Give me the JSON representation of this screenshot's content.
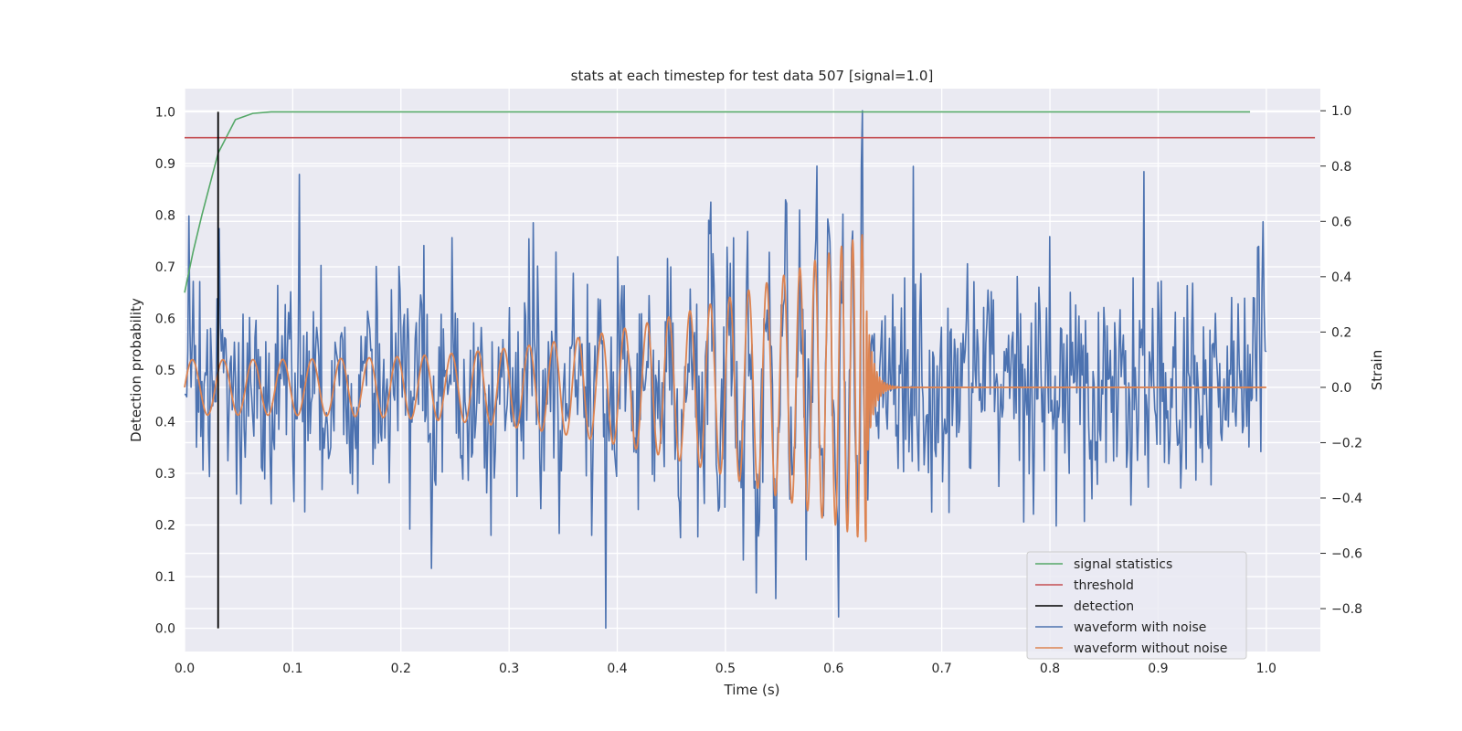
{
  "chart_data": {
    "type": "line",
    "title": "stats at each timestep for test data 507 [signal=1.0]",
    "xlabel": "Time (s)",
    "ylabel": "Detection probability",
    "y2label": "Strain",
    "xlim": [
      0.0,
      1.05
    ],
    "ylim": [
      -0.045,
      1.045
    ],
    "y2lim": [
      -0.955,
      1.08
    ],
    "xticks": [
      "0.0",
      "0.1",
      "0.2",
      "0.3",
      "0.4",
      "0.5",
      "0.6",
      "0.7",
      "0.8",
      "0.9",
      "1.0"
    ],
    "yticks": [
      "0.0",
      "0.1",
      "0.2",
      "0.3",
      "0.4",
      "0.5",
      "0.6",
      "0.7",
      "0.8",
      "0.9",
      "1.0"
    ],
    "y2ticks": [
      "−0.8",
      "−0.6",
      "−0.4",
      "−0.2",
      "0.0",
      "0.2",
      "0.4",
      "0.6",
      "0.8",
      "1.0"
    ],
    "grid": true,
    "legend_position": "lower-right",
    "colors": {
      "signal_statistics": "#55a868",
      "threshold": "#c44e52",
      "detection": "#000000",
      "waveform_with_noise": "#4c72b0",
      "waveform_without_noise": "#dd8452",
      "background": "#eaeaf2",
      "grid": "#ffffff"
    },
    "series": [
      {
        "name": "signal statistics",
        "axis": "left",
        "x": [
          0.0,
          0.008,
          0.016,
          0.031,
          0.047,
          0.063,
          0.08,
          0.1,
          0.985
        ],
        "y": [
          0.65,
          0.73,
          0.8,
          0.92,
          0.985,
          0.997,
          1.0,
          1.0,
          1.0
        ]
      },
      {
        "name": "threshold",
        "axis": "left",
        "x": [
          0.0,
          1.045
        ],
        "y": [
          0.95,
          0.95
        ]
      },
      {
        "name": "detection",
        "axis": "left",
        "x": [
          0.031,
          0.031
        ],
        "y": [
          0.0,
          1.0
        ]
      },
      {
        "name": "waveform with noise",
        "axis": "right",
        "t_start": 0.0,
        "t_end": 1.0,
        "amplitude_sd": 0.2,
        "points": 1000,
        "extremes": [
          {
            "x": 0.004,
            "y": 0.62
          },
          {
            "x": 0.106,
            "y": 0.77
          },
          {
            "x": 0.389,
            "y": -0.87
          },
          {
            "x": 0.605,
            "y": -0.83
          },
          {
            "x": 0.627,
            "y": 1.0
          },
          {
            "x": 0.887,
            "y": 0.78
          }
        ]
      },
      {
        "name": "waveform without noise",
        "axis": "right",
        "t_start": 0.0,
        "t_end": 1.0,
        "merger_time": 0.63,
        "amplitude_start": 0.1,
        "amplitude_peak": 0.57,
        "frequency_start_hz": 35,
        "ringdown_end": 0.66
      }
    ]
  }
}
